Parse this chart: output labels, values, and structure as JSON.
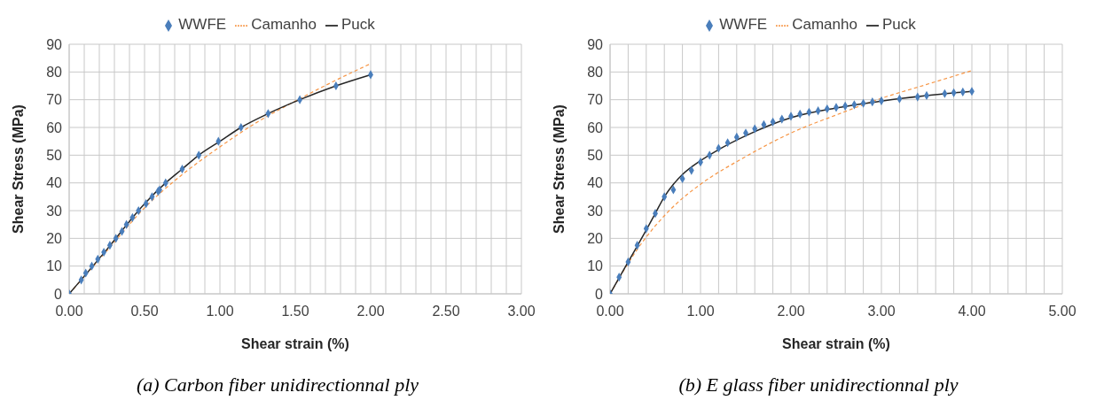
{
  "chart_data": [
    {
      "type": "line",
      "xlabel": "Shear strain (%)",
      "ylabel": "Shear Stress (MPa)",
      "annotations": [
        "(a) Carbon fiber unidirectionnal ply"
      ],
      "xlim": [
        0,
        3
      ],
      "ylim": [
        0,
        90
      ],
      "xticks": [
        {
          "value": 0,
          "label": "0.00"
        },
        {
          "value": 0.1,
          "label": null
        },
        {
          "value": 0.2,
          "label": null
        },
        {
          "value": 0.3,
          "label": null
        },
        {
          "value": 0.4,
          "label": null
        },
        {
          "value": 0.5,
          "label": "0.50"
        },
        {
          "value": 0.6,
          "label": null
        },
        {
          "value": 0.7,
          "label": null
        },
        {
          "value": 0.8,
          "label": null
        },
        {
          "value": 0.9,
          "label": null
        },
        {
          "value": 1,
          "label": "1.00"
        },
        {
          "value": 1.1,
          "label": null
        },
        {
          "value": 1.2,
          "label": null
        },
        {
          "value": 1.3,
          "label": null
        },
        {
          "value": 1.4,
          "label": null
        },
        {
          "value": 1.5,
          "label": "1.50"
        },
        {
          "value": 1.6,
          "label": null
        },
        {
          "value": 1.7,
          "label": null
        },
        {
          "value": 1.8,
          "label": null
        },
        {
          "value": 1.9,
          "label": null
        },
        {
          "value": 2,
          "label": "2.00"
        },
        {
          "value": 2.1,
          "label": null
        },
        {
          "value": 2.2,
          "label": null
        },
        {
          "value": 2.3,
          "label": null
        },
        {
          "value": 2.4,
          "label": null
        },
        {
          "value": 2.5,
          "label": "2.50"
        },
        {
          "value": 2.6,
          "label": null
        },
        {
          "value": 2.7,
          "label": null
        },
        {
          "value": 2.8,
          "label": null
        },
        {
          "value": 2.9,
          "label": null
        },
        {
          "value": 3,
          "label": "3.00"
        }
      ],
      "yticks": [
        0,
        10,
        20,
        30,
        40,
        50,
        60,
        70,
        80,
        90
      ],
      "grid": true,
      "legend": "top",
      "series": [
        {
          "name": "WWFE",
          "type": "scatter",
          "marker": "diamond",
          "color": "#4a7ebb",
          "x": [
            0,
            0.08,
            0.11,
            0.15,
            0.19,
            0.23,
            0.27,
            0.31,
            0.35,
            0.38,
            0.42,
            0.46,
            0.51,
            0.55,
            0.59,
            0.6,
            0.64,
            0.75,
            0.86,
            0.99,
            1.14,
            1.32,
            1.53,
            1.77,
            2.0
          ],
          "values": [
            0,
            5,
            7.5,
            10,
            12.5,
            15,
            17.5,
            20,
            22.5,
            25,
            27.5,
            30,
            32.5,
            35,
            37,
            37.5,
            40,
            45,
            50,
            55,
            60,
            65,
            70,
            75,
            79
          ]
        },
        {
          "name": "Camanho",
          "type": "line",
          "line_style": "dashed",
          "color": "#f79646",
          "x": [
            0,
            0.25,
            0.5,
            0.75,
            1.0,
            1.25,
            1.5,
            1.75,
            2.0
          ],
          "values": [
            0,
            15.5,
            31,
            43,
            53,
            62,
            69.5,
            76.5,
            83
          ]
        },
        {
          "name": "Puck",
          "type": "line",
          "line_style": "solid",
          "color": "#262626",
          "x": [
            0,
            0.25,
            0.5,
            0.64,
            0.75,
            0.86,
            1.0,
            1.14,
            1.32,
            1.53,
            1.77,
            2.0
          ],
          "values": [
            0,
            16,
            32.5,
            40,
            45,
            50,
            55,
            60,
            65,
            70,
            75,
            79
          ]
        }
      ]
    },
    {
      "type": "line",
      "xlabel": "Shear strain (%)",
      "ylabel": "Shear Stress (MPa)",
      "annotations": [
        "(b) E glass fiber unidirectionnal ply"
      ],
      "xlim": [
        0,
        5
      ],
      "ylim": [
        0,
        90
      ],
      "xticks": [
        {
          "value": 0,
          "label": "0.00"
        },
        {
          "value": 0.2,
          "label": null
        },
        {
          "value": 0.4,
          "label": null
        },
        {
          "value": 0.6,
          "label": null
        },
        {
          "value": 0.8,
          "label": null
        },
        {
          "value": 1,
          "label": "1.00"
        },
        {
          "value": 1.2,
          "label": null
        },
        {
          "value": 1.4,
          "label": null
        },
        {
          "value": 1.6,
          "label": null
        },
        {
          "value": 1.8,
          "label": null
        },
        {
          "value": 2,
          "label": "2.00"
        },
        {
          "value": 2.2,
          "label": null
        },
        {
          "value": 2.4,
          "label": null
        },
        {
          "value": 2.6,
          "label": null
        },
        {
          "value": 2.8,
          "label": null
        },
        {
          "value": 3,
          "label": "3.00"
        },
        {
          "value": 3.2,
          "label": null
        },
        {
          "value": 3.4,
          "label": null
        },
        {
          "value": 3.6,
          "label": null
        },
        {
          "value": 3.8,
          "label": null
        },
        {
          "value": 4,
          "label": "4.00"
        },
        {
          "value": 4.2,
          "label": null
        },
        {
          "value": 4.4,
          "label": null
        },
        {
          "value": 4.6,
          "label": null
        },
        {
          "value": 4.8,
          "label": null
        },
        {
          "value": 5,
          "label": "5.00"
        }
      ],
      "yticks": [
        0,
        10,
        20,
        30,
        40,
        50,
        60,
        70,
        80,
        90
      ],
      "grid": true,
      "legend": "top",
      "series": [
        {
          "name": "WWFE",
          "type": "scatter",
          "marker": "diamond",
          "color": "#4a7ebb",
          "x": [
            0,
            0.1,
            0.2,
            0.3,
            0.4,
            0.5,
            0.6,
            0.7,
            0.8,
            0.9,
            1.0,
            1.1,
            1.2,
            1.3,
            1.4,
            1.5,
            1.6,
            1.7,
            1.8,
            1.9,
            2.0,
            2.1,
            2.2,
            2.3,
            2.4,
            2.5,
            2.6,
            2.7,
            2.8,
            2.9,
            3.0,
            3.2,
            3.4,
            3.5,
            3.7,
            3.8,
            3.9,
            4.0
          ],
          "values": [
            0,
            6,
            11.5,
            17.5,
            23.5,
            29,
            35,
            37.5,
            41.5,
            44.5,
            47.5,
            50,
            52.5,
            54.5,
            56.5,
            58,
            59.5,
            61,
            62,
            63,
            64,
            64.8,
            65.5,
            66,
            66.7,
            67.2,
            67.7,
            68.2,
            68.7,
            69.2,
            69.6,
            70.3,
            71,
            71.5,
            72.2,
            72.5,
            72.8,
            73
          ]
        },
        {
          "name": "Camanho",
          "type": "line",
          "line_style": "dashed",
          "color": "#f79646",
          "x": [
            0,
            0.2,
            0.3,
            0.5,
            0.75,
            1.0,
            1.5,
            2.0,
            2.5,
            3.0,
            3.5,
            4.0
          ],
          "values": [
            0,
            11,
            16,
            24.5,
            33,
            39.5,
            49.5,
            58,
            64.5,
            70.5,
            75.5,
            80.5
          ]
        },
        {
          "name": "Puck",
          "type": "line",
          "line_style": "solid",
          "color": "#262626",
          "x": [
            0,
            0.2,
            0.4,
            0.5,
            0.6,
            0.7,
            0.8,
            1.0,
            1.2,
            1.5,
            2.0,
            2.5,
            3.0,
            3.5,
            4.0
          ],
          "values": [
            0,
            11.5,
            23,
            29,
            35,
            39.5,
            43,
            48,
            52,
            57,
            63.5,
            67,
            69.5,
            71.5,
            73
          ]
        }
      ]
    }
  ]
}
